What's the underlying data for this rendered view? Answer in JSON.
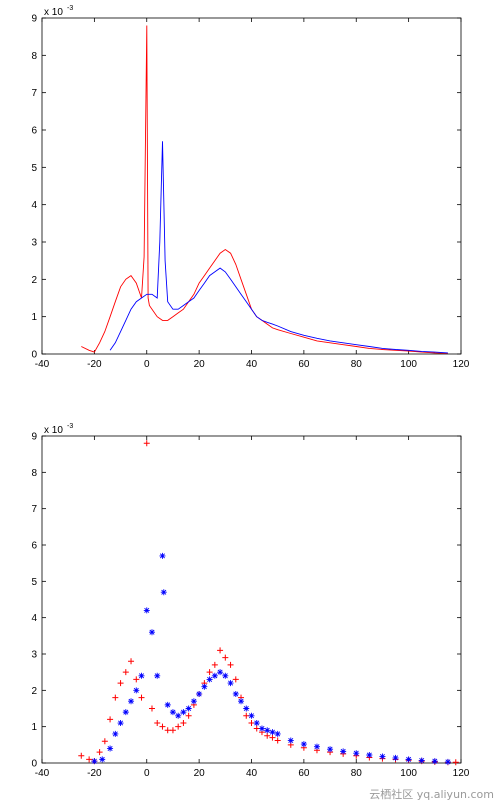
{
  "chart_data": [
    {
      "type": "line",
      "title": "",
      "xlabel": "",
      "ylabel": "",
      "y_exponent_label": "x 10",
      "y_exponent": "-3",
      "xlim": [
        -40,
        120
      ],
      "ylim": [
        0,
        9
      ],
      "xticks": [
        "-40",
        "-20",
        "0",
        "20",
        "40",
        "60",
        "80",
        "100",
        "120"
      ],
      "yticks": [
        "0",
        "1",
        "2",
        "3",
        "4",
        "5",
        "6",
        "7",
        "8",
        "9"
      ],
      "grid": false,
      "legend": "none",
      "series": [
        {
          "color": "#ff0000",
          "x": [
            -25,
            -22,
            -20,
            -18,
            -16,
            -14,
            -12,
            -10,
            -8,
            -6,
            -4,
            -2,
            -1,
            0,
            0.5,
            1,
            2,
            4,
            6,
            8,
            10,
            12,
            14,
            16,
            18,
            20,
            22,
            24,
            26,
            28,
            30,
            32,
            34,
            36,
            38,
            40,
            42,
            44,
            46,
            48,
            50,
            55,
            60,
            65,
            70,
            75,
            80,
            85,
            90,
            95,
            100,
            105,
            110,
            115
          ],
          "y": [
            0.2,
            0.1,
            0.05,
            0.3,
            0.6,
            1.0,
            1.4,
            1.8,
            2.0,
            2.1,
            1.9,
            1.5,
            2.6,
            8.8,
            1.5,
            1.3,
            1.2,
            1.0,
            0.9,
            0.9,
            1.0,
            1.1,
            1.2,
            1.4,
            1.6,
            1.9,
            2.1,
            2.3,
            2.5,
            2.7,
            2.8,
            2.7,
            2.4,
            2.0,
            1.6,
            1.2,
            1.0,
            0.9,
            0.8,
            0.7,
            0.65,
            0.55,
            0.45,
            0.35,
            0.3,
            0.25,
            0.2,
            0.15,
            0.12,
            0.1,
            0.08,
            0.05,
            0.03,
            0.02
          ]
        },
        {
          "color": "#0000ff",
          "x": [
            -14,
            -12,
            -10,
            -8,
            -6,
            -4,
            -2,
            0,
            2,
            4,
            5,
            6,
            7,
            8,
            10,
            12,
            14,
            16,
            18,
            20,
            22,
            24,
            26,
            28,
            30,
            32,
            34,
            36,
            38,
            40,
            42,
            44,
            46,
            48,
            50,
            55,
            60,
            65,
            70,
            75,
            80,
            85,
            90,
            95,
            100,
            105,
            110,
            115
          ],
          "y": [
            0.1,
            0.3,
            0.6,
            0.9,
            1.2,
            1.4,
            1.5,
            1.6,
            1.6,
            1.5,
            3.0,
            5.7,
            2.5,
            1.4,
            1.2,
            1.2,
            1.3,
            1.4,
            1.5,
            1.7,
            1.9,
            2.1,
            2.2,
            2.3,
            2.2,
            2.0,
            1.8,
            1.6,
            1.4,
            1.2,
            1.0,
            0.9,
            0.85,
            0.8,
            0.75,
            0.6,
            0.5,
            0.42,
            0.35,
            0.3,
            0.25,
            0.2,
            0.15,
            0.12,
            0.1,
            0.07,
            0.05,
            0.03
          ]
        }
      ]
    },
    {
      "type": "scatter",
      "title": "",
      "xlabel": "",
      "ylabel": "",
      "y_exponent_label": "x 10",
      "y_exponent": "-3",
      "xlim": [
        -40,
        120
      ],
      "ylim": [
        0,
        9
      ],
      "xticks": [
        "-40",
        "-20",
        "0",
        "20",
        "40",
        "60",
        "80",
        "100",
        "120"
      ],
      "yticks": [
        "0",
        "1",
        "2",
        "3",
        "4",
        "5",
        "6",
        "7",
        "8",
        "9"
      ],
      "grid": false,
      "legend": "none",
      "series": [
        {
          "marker": "+",
          "color": "#ff0000",
          "x": [
            -25,
            -22,
            -20,
            -18,
            -16,
            -14,
            -12,
            -10,
            -8,
            -6,
            -4,
            -2,
            0,
            2,
            4,
            6,
            8,
            10,
            12,
            14,
            16,
            18,
            20,
            22,
            24,
            26,
            28,
            30,
            32,
            34,
            36,
            38,
            40,
            42,
            44,
            46,
            48,
            50,
            55,
            60,
            65,
            70,
            75,
            80,
            85,
            90,
            95,
            100,
            105,
            110,
            115,
            118
          ],
          "y": [
            0.2,
            0.1,
            0.05,
            0.3,
            0.6,
            1.2,
            1.8,
            2.2,
            2.5,
            2.8,
            2.3,
            1.8,
            8.8,
            1.5,
            1.1,
            1.0,
            0.9,
            0.9,
            1.0,
            1.1,
            1.3,
            1.6,
            1.9,
            2.2,
            2.5,
            2.7,
            3.1,
            2.9,
            2.7,
            2.3,
            1.8,
            1.3,
            1.1,
            0.95,
            0.85,
            0.75,
            0.7,
            0.62,
            0.5,
            0.42,
            0.35,
            0.3,
            0.25,
            0.2,
            0.15,
            0.12,
            0.1,
            0.08,
            0.05,
            0.03,
            0.02,
            0.02
          ]
        },
        {
          "marker": "*",
          "color": "#0000ff",
          "x": [
            -20,
            -17,
            -14,
            -12,
            -10,
            -8,
            -6,
            -4,
            -2,
            0,
            2,
            4,
            6,
            6.5,
            8,
            10,
            12,
            14,
            16,
            18,
            20,
            22,
            24,
            26,
            28,
            30,
            32,
            34,
            36,
            38,
            40,
            42,
            44,
            46,
            48,
            50,
            55,
            60,
            65,
            70,
            75,
            80,
            85,
            90,
            95,
            100,
            105,
            110,
            115
          ],
          "y": [
            0.05,
            0.1,
            0.4,
            0.8,
            1.1,
            1.4,
            1.7,
            2.0,
            2.4,
            4.2,
            3.6,
            2.4,
            5.7,
            4.7,
            1.6,
            1.4,
            1.3,
            1.4,
            1.5,
            1.7,
            1.9,
            2.1,
            2.3,
            2.4,
            2.5,
            2.4,
            2.2,
            1.9,
            1.7,
            1.5,
            1.3,
            1.1,
            0.95,
            0.9,
            0.85,
            0.8,
            0.62,
            0.52,
            0.45,
            0.38,
            0.32,
            0.27,
            0.22,
            0.18,
            0.14,
            0.1,
            0.07,
            0.05,
            0.03
          ]
        }
      ]
    }
  ],
  "watermark": "云栖社区 yq.aliyun.com"
}
